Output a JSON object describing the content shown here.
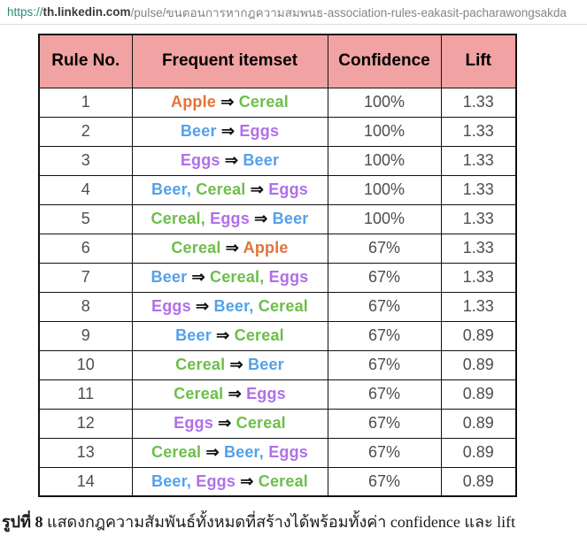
{
  "url_bar": {
    "scheme": "https://",
    "host": "th.linkedin.com",
    "path": "/pulse/ขนตอนการหากฎความสมพนธ-association-rules-eakasit-pacharawongsakda"
  },
  "colors": {
    "header_bg": "#f1a3a3",
    "border": "#111111",
    "body_text": "#4d4d4d",
    "url_scheme": "#2e8b7a",
    "url_host": "#3a3a3a",
    "url_path": "#848484",
    "arrow": "#111111",
    "items": {
      "Apple": "#e2733b",
      "Cereal": "#6dbe4b",
      "Beer": "#54a1ea",
      "Eggs": "#b06fe8"
    }
  },
  "table": {
    "headers": [
      "Rule No.",
      "Frequent itemset",
      "Confidence",
      "Lift"
    ],
    "arrow_glyph": "⇒",
    "rows": [
      {
        "no": "1",
        "antecedent": [
          "Apple"
        ],
        "consequent": [
          "Cereal"
        ],
        "confidence": "100%",
        "lift": "1.33"
      },
      {
        "no": "2",
        "antecedent": [
          "Beer"
        ],
        "consequent": [
          "Eggs"
        ],
        "confidence": "100%",
        "lift": "1.33"
      },
      {
        "no": "3",
        "antecedent": [
          "Eggs"
        ],
        "consequent": [
          "Beer"
        ],
        "confidence": "100%",
        "lift": "1.33"
      },
      {
        "no": "4",
        "antecedent": [
          "Beer",
          "Cereal"
        ],
        "consequent": [
          "Eggs"
        ],
        "confidence": "100%",
        "lift": "1.33"
      },
      {
        "no": "5",
        "antecedent": [
          "Cereal",
          "Eggs"
        ],
        "consequent": [
          "Beer"
        ],
        "confidence": "100%",
        "lift": "1.33"
      },
      {
        "no": "6",
        "antecedent": [
          "Cereal"
        ],
        "consequent": [
          "Apple"
        ],
        "confidence": "67%",
        "lift": "1.33"
      },
      {
        "no": "7",
        "antecedent": [
          "Beer"
        ],
        "consequent": [
          "Cereal",
          "Eggs"
        ],
        "confidence": "67%",
        "lift": "1.33"
      },
      {
        "no": "8",
        "antecedent": [
          "Eggs"
        ],
        "consequent": [
          "Beer",
          "Cereal"
        ],
        "confidence": "67%",
        "lift": "1.33"
      },
      {
        "no": "9",
        "antecedent": [
          "Beer"
        ],
        "consequent": [
          "Cereal"
        ],
        "confidence": "67%",
        "lift": "0.89"
      },
      {
        "no": "10",
        "antecedent": [
          "Cereal"
        ],
        "consequent": [
          "Beer"
        ],
        "confidence": "67%",
        "lift": "0.89"
      },
      {
        "no": "11",
        "antecedent": [
          "Cereal"
        ],
        "consequent": [
          "Eggs"
        ],
        "confidence": "67%",
        "lift": "0.89"
      },
      {
        "no": "12",
        "antecedent": [
          "Eggs"
        ],
        "consequent": [
          "Cereal"
        ],
        "confidence": "67%",
        "lift": "0.89"
      },
      {
        "no": "13",
        "antecedent": [
          "Cereal"
        ],
        "consequent": [
          "Beer",
          "Eggs"
        ],
        "confidence": "67%",
        "lift": "0.89"
      },
      {
        "no": "14",
        "antecedent": [
          "Beer",
          "Eggs"
        ],
        "consequent": [
          "Cereal"
        ],
        "confidence": "67%",
        "lift": "0.89"
      }
    ]
  },
  "caption": {
    "fig_label": "รูปที่ 8",
    "text": " แสดงกฎความสัมพันธ์ทั้งหมดที่สร้างได้พร้อมทั้งค่า confidence และ lift"
  }
}
